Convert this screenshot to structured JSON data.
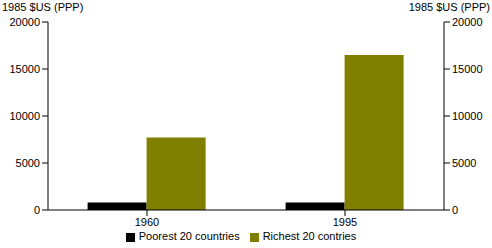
{
  "chart_data": {
    "type": "bar",
    "categories": [
      "1960",
      "1995"
    ],
    "series": [
      {
        "name": "Poorest 20 countries",
        "color": "#000000",
        "values": [
          800,
          800
        ]
      },
      {
        "name": "Richest 20 contries",
        "color": "#808000",
        "values": [
          7700,
          16500
        ]
      }
    ],
    "y_label": "1985 $US (PPP)",
    "y2_label": "1985 $US (PPP)",
    "ylim": [
      0,
      20000
    ],
    "yticks": [
      0,
      5000,
      10000,
      15000,
      20000
    ],
    "y2lim": [
      0,
      20000
    ],
    "y2ticks": [
      0,
      5000,
      10000,
      15000,
      20000
    ],
    "grid": false,
    "legend": "bottom"
  }
}
